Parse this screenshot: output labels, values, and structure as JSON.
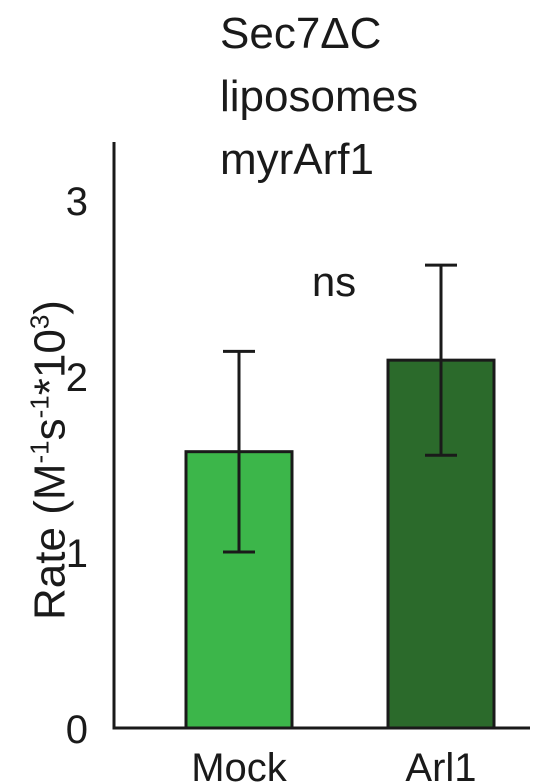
{
  "chart_data": {
    "type": "bar",
    "title_lines": [
      "Sec7ΔC",
      "liposomes",
      "myrArf1"
    ],
    "ylabel": {
      "prefix": "Rate (M",
      "exp1": "-1",
      "mid": "s",
      "exp2": "-1",
      "mid2": "*10",
      "exp3": "3",
      "suffix": ")"
    },
    "categories": [
      "Mock",
      "Arl1"
    ],
    "values": [
      1.57,
      2.09
    ],
    "errors": [
      0.57,
      0.54
    ],
    "colors": [
      "#3cb64a",
      "#2b6a2b"
    ],
    "ylim": [
      0,
      3.3
    ],
    "yticks": [
      "0",
      "1",
      "2",
      "3"
    ],
    "annotation": "ns"
  }
}
